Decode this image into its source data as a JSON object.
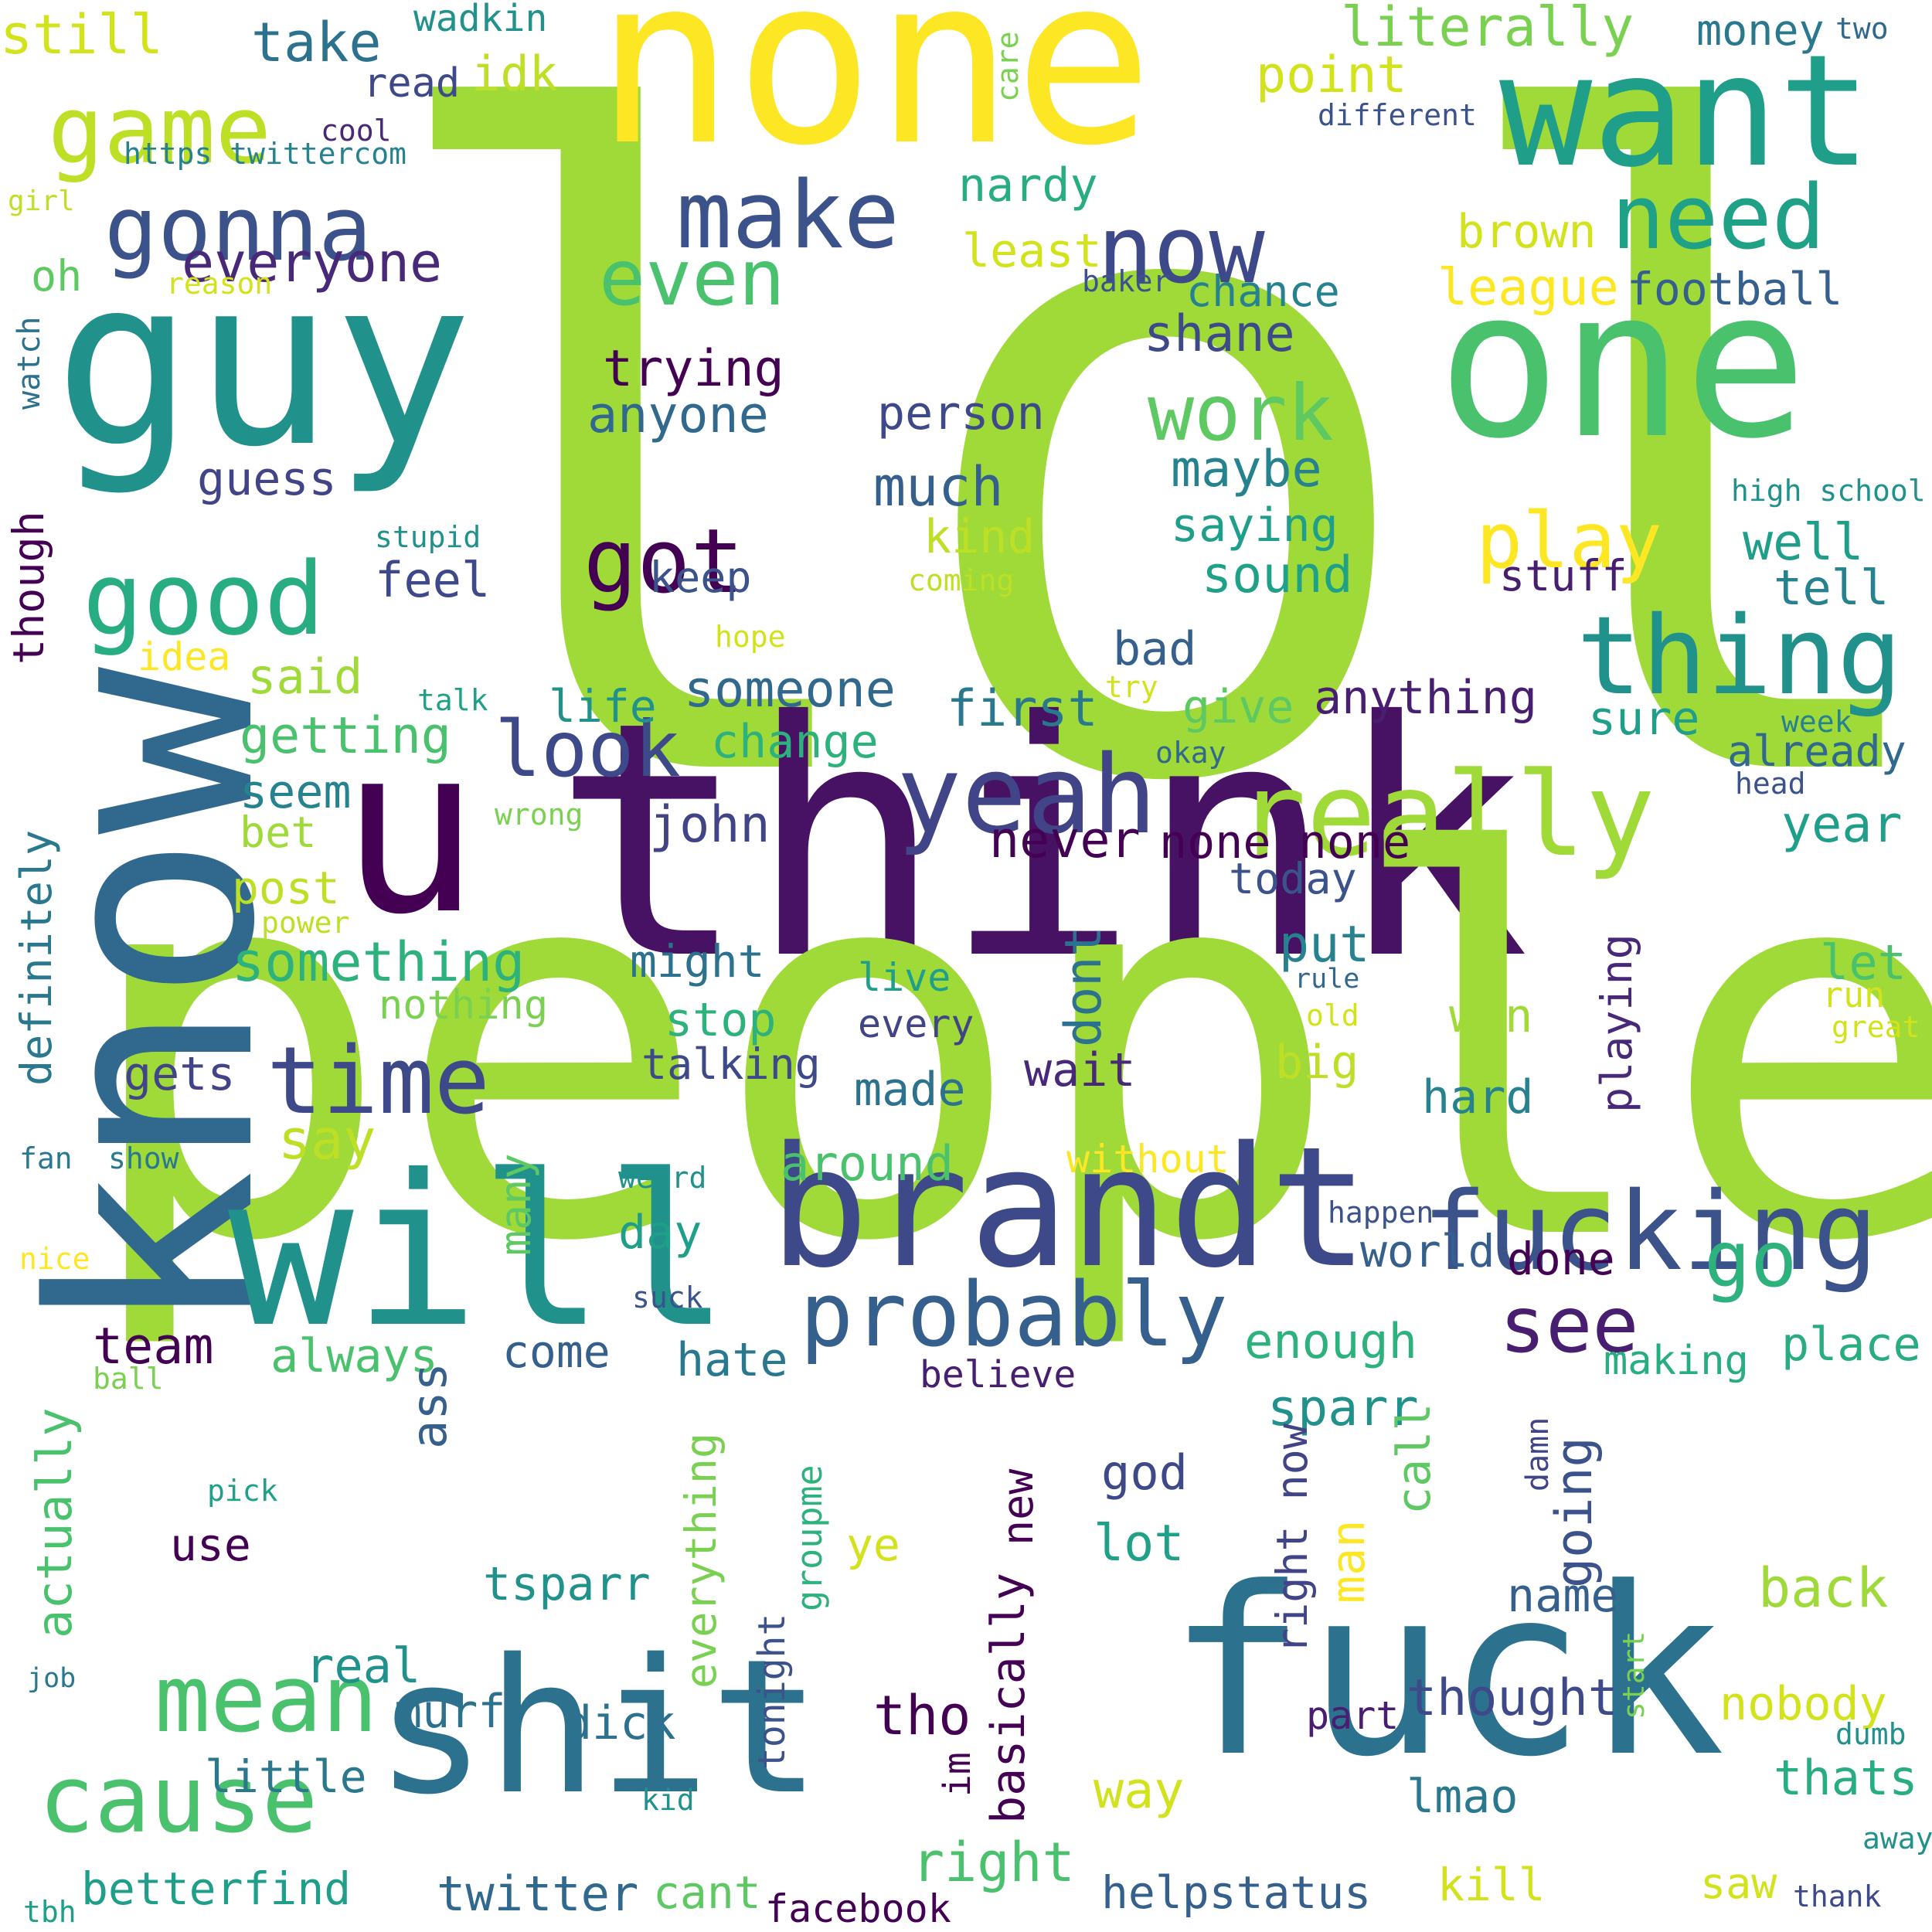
{
  "words": [
    {
      "text": "lol",
      "color": "#a0da39"
    },
    {
      "text": "think",
      "color": "#471164"
    },
    {
      "text": "people",
      "color": "#a0da39"
    },
    {
      "text": "none",
      "color": "#fde725"
    },
    {
      "text": "guy",
      "color": "#21918c"
    },
    {
      "text": "know",
      "color": "#31688e"
    },
    {
      "text": "one",
      "color": "#4ac16d"
    },
    {
      "text": "want",
      "color": "#1f9e89"
    },
    {
      "text": "will",
      "color": "#21918c"
    },
    {
      "text": "brandt",
      "color": "#3e4989"
    },
    {
      "text": "fuck",
      "color": "#2c728e"
    },
    {
      "text": "shit",
      "color": "#2c728e"
    },
    {
      "text": "u",
      "color": "#440154"
    },
    {
      "text": "fucking",
      "color": "#3b528b"
    },
    {
      "text": "yeah",
      "color": "#414487"
    },
    {
      "text": "really",
      "color": "#a0da39"
    },
    {
      "text": "thing",
      "color": "#21918c"
    },
    {
      "text": "need",
      "color": "#1fa187"
    },
    {
      "text": "make",
      "color": "#3b528b"
    },
    {
      "text": "now",
      "color": "#3e4989"
    },
    {
      "text": "game",
      "color": "#bddf26"
    },
    {
      "text": "good",
      "color": "#27ad81"
    },
    {
      "text": "gonna",
      "color": "#3b528b"
    },
    {
      "text": "got",
      "color": "#440154"
    },
    {
      "text": "time",
      "color": "#3e4989"
    },
    {
      "text": "probably",
      "color": "#355f8d"
    },
    {
      "text": "cause",
      "color": "#4ac16d"
    },
    {
      "text": "mean",
      "color": "#4ac16d"
    },
    {
      "text": "even",
      "color": "#4ac16d"
    },
    {
      "text": "work",
      "color": "#5ec962"
    },
    {
      "text": "play",
      "color": "#fde725"
    },
    {
      "text": "look",
      "color": "#3e4989"
    },
    {
      "text": "see",
      "color": "#481f70"
    },
    {
      "text": "go",
      "color": "#2db27d"
    },
    {
      "text": "literally",
      "color": "#7ad151"
    },
    {
      "text": "everyone",
      "color": "#482878"
    },
    {
      "text": "take",
      "color": "#2c728e"
    },
    {
      "text": "still",
      "color": "#d2e21b"
    },
    {
      "text": "wadkin",
      "color": "#21918c"
    },
    {
      "text": "idk",
      "color": "#bddf26"
    },
    {
      "text": "read",
      "color": "#3e4989"
    },
    {
      "text": "point",
      "color": "#d2e21b"
    },
    {
      "text": "money",
      "color": "#2a788e"
    },
    {
      "text": "two",
      "color": "#31688e"
    },
    {
      "text": "care",
      "color": "#7ad151"
    },
    {
      "text": "cool",
      "color": "#482878"
    },
    {
      "text": "different",
      "color": "#3b528b"
    },
    {
      "text": "https twittercom",
      "color": "#26828e"
    },
    {
      "text": "girl",
      "color": "#bddf26"
    },
    {
      "text": "nardy",
      "color": "#27ad81"
    },
    {
      "text": "least",
      "color": "#d2e21b"
    },
    {
      "text": "brown",
      "color": "#d2e21b"
    },
    {
      "text": "league",
      "color": "#fde725"
    },
    {
      "text": "football",
      "color": "#355f8d"
    },
    {
      "text": "chance",
      "color": "#26828e"
    },
    {
      "text": "baker",
      "color": "#3b528b"
    },
    {
      "text": "oh",
      "color": "#5ec962"
    },
    {
      "text": "reason",
      "color": "#d2e21b"
    },
    {
      "text": "shane",
      "color": "#3e4989"
    },
    {
      "text": "trying",
      "color": "#440154"
    },
    {
      "text": "anyone",
      "color": "#31688e"
    },
    {
      "text": "person",
      "color": "#3e4989"
    },
    {
      "text": "watch",
      "color": "#2c728e"
    },
    {
      "text": "maybe",
      "color": "#26828e"
    },
    {
      "text": "high school",
      "color": "#21918c"
    },
    {
      "text": "much",
      "color": "#355f8d"
    },
    {
      "text": "guess",
      "color": "#414487"
    },
    {
      "text": "saying",
      "color": "#1f9e89"
    },
    {
      "text": "well",
      "color": "#1f9e89"
    },
    {
      "text": "kind",
      "color": "#bddf26"
    },
    {
      "text": "stupid",
      "color": "#21918c"
    },
    {
      "text": "though",
      "color": "#440154"
    },
    {
      "text": "keep",
      "color": "#3b528b"
    },
    {
      "text": "sound",
      "color": "#1fa187"
    },
    {
      "text": "stuff",
      "color": "#481f70"
    },
    {
      "text": "tell",
      "color": "#26828e"
    },
    {
      "text": "feel",
      "color": "#3e4989"
    },
    {
      "text": "coming",
      "color": "#bddf26"
    },
    {
      "text": "hope",
      "color": "#d2e21b"
    },
    {
      "text": "bad",
      "color": "#355f8d"
    },
    {
      "text": "idea",
      "color": "#fde725"
    },
    {
      "text": "said",
      "color": "#a0da39"
    },
    {
      "text": "someone",
      "color": "#31688e"
    },
    {
      "text": "try",
      "color": "#d2e21b"
    },
    {
      "text": "talk",
      "color": "#1fa187"
    },
    {
      "text": "life",
      "color": "#21918c"
    },
    {
      "text": "first",
      "color": "#2a788e"
    },
    {
      "text": "give",
      "color": "#5ec962"
    },
    {
      "text": "anything",
      "color": "#481f70"
    },
    {
      "text": "sure",
      "color": "#1f9e89"
    },
    {
      "text": "week",
      "color": "#26828e"
    },
    {
      "text": "getting",
      "color": "#4ac16d"
    },
    {
      "text": "change",
      "color": "#2db27d"
    },
    {
      "text": "already",
      "color": "#31688e"
    },
    {
      "text": "okay",
      "color": "#31688e"
    },
    {
      "text": "head",
      "color": "#3b528b"
    },
    {
      "text": "seem",
      "color": "#26828e"
    },
    {
      "text": "wrong",
      "color": "#7ad151"
    },
    {
      "text": "definitely",
      "color": "#2a788e"
    },
    {
      "text": "bet",
      "color": "#a0da39"
    },
    {
      "text": "john",
      "color": "#414487"
    },
    {
      "text": "never",
      "color": "#440154"
    },
    {
      "text": "none none",
      "color": "#440154"
    },
    {
      "text": "year",
      "color": "#1f9e89"
    },
    {
      "text": "post",
      "color": "#bddf26"
    },
    {
      "text": "today",
      "color": "#3b528b"
    },
    {
      "text": "power",
      "color": "#bddf26"
    },
    {
      "text": "something",
      "color": "#2db27d"
    },
    {
      "text": "might",
      "color": "#2c728e"
    },
    {
      "text": "dont",
      "color": "#2c728e"
    },
    {
      "text": "put",
      "color": "#26828e"
    },
    {
      "text": "let",
      "color": "#4ac16d"
    },
    {
      "text": "live",
      "color": "#1f9e89"
    },
    {
      "text": "rule",
      "color": "#31688e"
    },
    {
      "text": "nothing",
      "color": "#7ad151"
    },
    {
      "text": "stop",
      "color": "#2db27d"
    },
    {
      "text": "every",
      "color": "#414487"
    },
    {
      "text": "old",
      "color": "#d2e21b"
    },
    {
      "text": "win",
      "color": "#a0da39"
    },
    {
      "text": "playing",
      "color": "#482878"
    },
    {
      "text": "run",
      "color": "#d2e21b"
    },
    {
      "text": "great",
      "color": "#d2e21b"
    },
    {
      "text": "gets",
      "color": "#414487"
    },
    {
      "text": "talking",
      "color": "#3e4989"
    },
    {
      "text": "wait",
      "color": "#482878"
    },
    {
      "text": "big",
      "color": "#bddf26"
    },
    {
      "text": "made",
      "color": "#2c728e"
    },
    {
      "text": "hard",
      "color": "#26828e"
    },
    {
      "text": "say",
      "color": "#bddf26"
    },
    {
      "text": "around",
      "color": "#4ac16d"
    },
    {
      "text": "without",
      "color": "#fde725"
    },
    {
      "text": "fan",
      "color": "#2a788e"
    },
    {
      "text": "show",
      "color": "#2a788e"
    },
    {
      "text": "weird",
      "color": "#21918c"
    },
    {
      "text": "happen",
      "color": "#3b528b"
    },
    {
      "text": "many",
      "color": "#5ec962"
    },
    {
      "text": "day",
      "color": "#1f9e89"
    },
    {
      "text": "world",
      "color": "#355f8d"
    },
    {
      "text": "done",
      "color": "#440154"
    },
    {
      "text": "nice",
      "color": "#fde725"
    },
    {
      "text": "suck",
      "color": "#3b528b"
    },
    {
      "text": "team",
      "color": "#440154"
    },
    {
      "text": "always",
      "color": "#4ac16d"
    },
    {
      "text": "come",
      "color": "#355f8d"
    },
    {
      "text": "hate",
      "color": "#2a788e"
    },
    {
      "text": "enough",
      "color": "#2db27d"
    },
    {
      "text": "making",
      "color": "#27ad81"
    },
    {
      "text": "place",
      "color": "#27ad81"
    },
    {
      "text": "ball",
      "color": "#7ad151"
    },
    {
      "text": "believe",
      "color": "#481f70"
    },
    {
      "text": "ass",
      "color": "#355f8d"
    },
    {
      "text": "sparr",
      "color": "#21918c"
    },
    {
      "text": "going",
      "color": "#3b528b"
    },
    {
      "text": "damn",
      "color": "#414487"
    },
    {
      "text": "god",
      "color": "#3e4989"
    },
    {
      "text": "actually",
      "color": "#4ac16d"
    },
    {
      "text": "everything",
      "color": "#7ad151"
    },
    {
      "text": "new",
      "color": "#440154"
    },
    {
      "text": "right now",
      "color": "#414487"
    },
    {
      "text": "call",
      "color": "#5ec962"
    },
    {
      "text": "pick",
      "color": "#1fa187"
    },
    {
      "text": "use",
      "color": "#440154"
    },
    {
      "text": "ye",
      "color": "#d2e21b"
    },
    {
      "text": "lot",
      "color": "#1fa187"
    },
    {
      "text": "back",
      "color": "#a0da39"
    },
    {
      "text": "groupme",
      "color": "#2db27d"
    },
    {
      "text": "man",
      "color": "#fde725"
    },
    {
      "text": "tsparr",
      "color": "#21918c"
    },
    {
      "text": "name",
      "color": "#355f8d"
    },
    {
      "text": "basically",
      "color": "#440154"
    },
    {
      "text": "real",
      "color": "#21918c"
    },
    {
      "text": "job",
      "color": "#2a788e"
    },
    {
      "text": "murf",
      "color": "#2c728e"
    },
    {
      "text": "dick",
      "color": "#2c728e"
    },
    {
      "text": "tho",
      "color": "#440154"
    },
    {
      "text": "start",
      "color": "#7ad151"
    },
    {
      "text": "part",
      "color": "#481f70"
    },
    {
      "text": "thought",
      "color": "#3e4989"
    },
    {
      "text": "nobody",
      "color": "#d2e21b"
    },
    {
      "text": "tonight",
      "color": "#3b528b"
    },
    {
      "text": "little",
      "color": "#2a788e"
    },
    {
      "text": "im",
      "color": "#440154"
    },
    {
      "text": "way",
      "color": "#d2e21b"
    },
    {
      "text": "dumb",
      "color": "#21918c"
    },
    {
      "text": "thats",
      "color": "#27ad81"
    },
    {
      "text": "kid",
      "color": "#21918c"
    },
    {
      "text": "lmao",
      "color": "#2a788e"
    },
    {
      "text": "away",
      "color": "#21918c"
    },
    {
      "text": "right",
      "color": "#4ac16d"
    },
    {
      "text": "betterfind",
      "color": "#1f9e89"
    },
    {
      "text": "tbh",
      "color": "#1f9e89"
    },
    {
      "text": "twitter",
      "color": "#31688e"
    },
    {
      "text": "cant",
      "color": "#5ec962"
    },
    {
      "text": "facebook",
      "color": "#440154"
    },
    {
      "text": "helpstatus",
      "color": "#355f8d"
    },
    {
      "text": "kill",
      "color": "#d2e21b"
    },
    {
      "text": "saw",
      "color": "#d2e21b"
    },
    {
      "text": "thank",
      "color": "#3e4989"
    }
  ]
}
